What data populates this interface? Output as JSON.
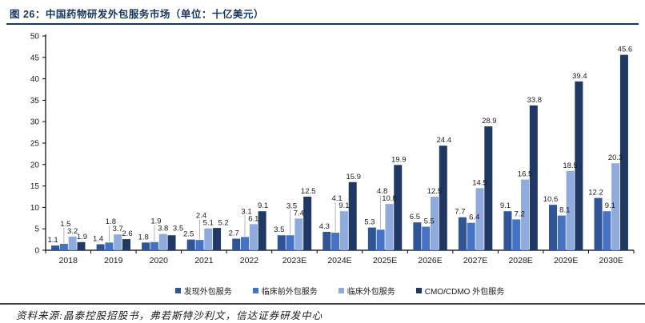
{
  "header": {
    "title": "图 26：中国药物研发外包服务市场（单位：十亿美元）"
  },
  "chart_data": {
    "type": "bar",
    "title": "中国药物研发外包服务市场",
    "unit": "十亿美元",
    "categories": [
      "2018",
      "2019",
      "2020",
      "2021",
      "2022",
      "2023E",
      "2024E",
      "2025E",
      "2026E",
      "2027E",
      "2028E",
      "2029E",
      "2030E"
    ],
    "series": [
      {
        "name": "发现外包服务",
        "color": "#2f5597",
        "values": [
          1.1,
          1.4,
          1.8,
          2.5,
          2.7,
          3.5,
          4.3,
          5.3,
          6.5,
          7.7,
          9.1,
          10.6,
          12.2
        ]
      },
      {
        "name": "临床前外包服务",
        "color": "#4472c4",
        "values": [
          1.5,
          1.8,
          1.9,
          2.4,
          3.1,
          3.5,
          4.1,
          4.8,
          5.5,
          6.4,
          7.2,
          8.1,
          9.1
        ]
      },
      {
        "name": "临床外包服务",
        "color": "#8faadc",
        "values": [
          3.2,
          3.7,
          3.8,
          5.1,
          6.1,
          7.4,
          9.1,
          10.8,
          12.5,
          14.5,
          16.5,
          18.5,
          20.3
        ]
      },
      {
        "name": "CMO/CDMO 外包服务",
        "color": "#1f3864",
        "values": [
          1.9,
          2.6,
          3.5,
          5.2,
          9.1,
          12.5,
          15.9,
          19.9,
          24.4,
          28.9,
          33.8,
          39.4,
          45.6
        ]
      }
    ],
    "ylim": [
      0,
      50
    ],
    "ytick_step": 5,
    "yticks": [
      0,
      5,
      10,
      15,
      20,
      25,
      30,
      35,
      40,
      45,
      50
    ],
    "grid": false,
    "legend_position": "bottom",
    "value_label_decimals": 1
  },
  "source": {
    "text": "资料来源:晶泰控股招股书，弗若斯特沙利文，信达证券研发中心"
  },
  "colors": {
    "title": "#17375e",
    "title_rule": "#17375e",
    "axis": "#000000",
    "data_label": "#1a1a1a",
    "leader_line": "#ababab",
    "source_rule": "#404040"
  }
}
